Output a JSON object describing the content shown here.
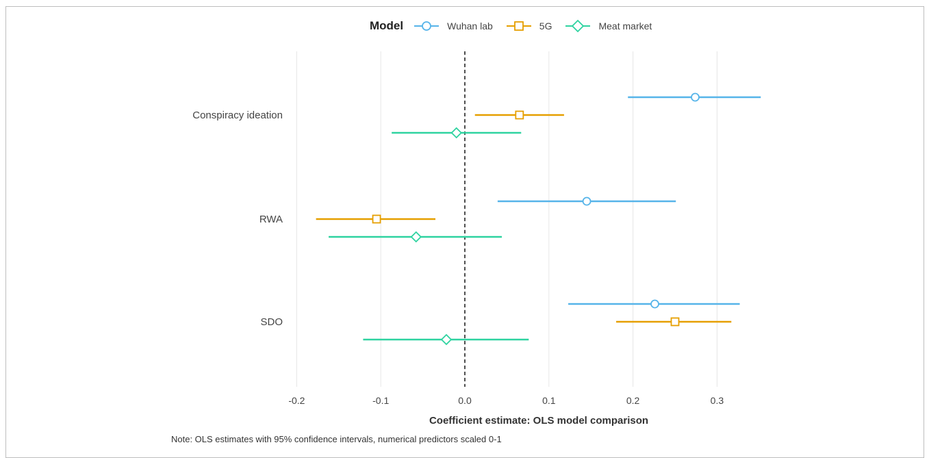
{
  "chart_data": {
    "type": "scatter",
    "subtype": "coefficient-plot-with-confidence-intervals",
    "legend_title": "Model",
    "legend_position": "top",
    "xlabel": "Coefficient estimate: OLS model comparison",
    "xlim": [
      -0.2,
      0.35
    ],
    "x_ticks": [
      -0.2,
      -0.1,
      0.0,
      0.1,
      0.2,
      0.3
    ],
    "x_tick_labels": [
      "-0.2",
      "-0.1",
      "0.0",
      "0.1",
      "0.2",
      "0.3"
    ],
    "reference_line": 0.0,
    "grid": "vertical-major",
    "categories": [
      "Conspiracy ideation",
      "RWA",
      "SDO"
    ],
    "series": [
      {
        "name": "Wuhan lab",
        "color": "#56B4E9",
        "marker": "circle",
        "estimates": [
          0.274,
          0.145,
          0.226
        ],
        "lower": [
          0.194,
          0.039,
          0.123
        ],
        "upper": [
          0.352,
          0.251,
          0.327
        ]
      },
      {
        "name": "5G",
        "color": "#E69F00",
        "marker": "square",
        "estimates": [
          0.065,
          -0.105,
          0.25
        ],
        "lower": [
          0.012,
          -0.177,
          0.18
        ],
        "upper": [
          0.118,
          -0.035,
          0.317
        ]
      },
      {
        "name": "Meat market",
        "color": "#2ED3A0",
        "marker": "diamond",
        "estimates": [
          -0.01,
          -0.058,
          -0.022
        ],
        "lower": [
          -0.087,
          -0.162,
          -0.121
        ],
        "upper": [
          0.067,
          0.044,
          0.076
        ]
      }
    ]
  },
  "note": "Note: OLS estimates with 95% confidence intervals, numerical predictors scaled 0-1"
}
